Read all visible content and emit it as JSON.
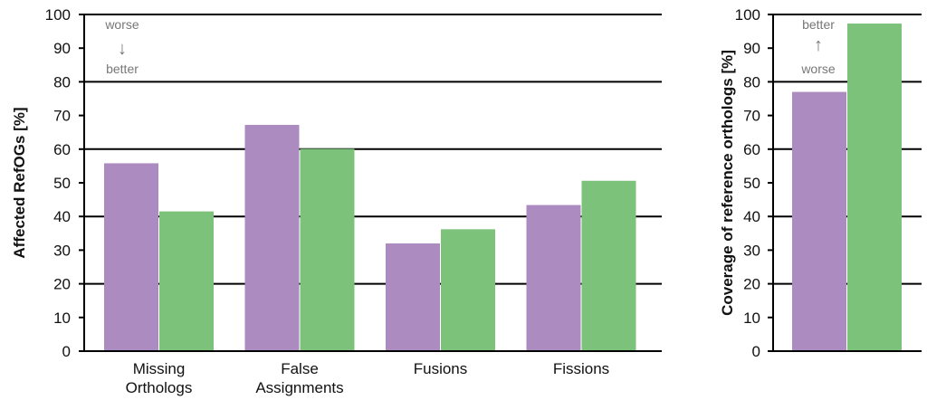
{
  "chart_data": [
    {
      "type": "bar",
      "ylabel": "Affected RefOGs [%]",
      "ylim": [
        0,
        100
      ],
      "yticks": [
        0,
        10,
        20,
        30,
        40,
        50,
        60,
        70,
        80,
        90,
        100
      ],
      "ytick_labels": [
        "0",
        "10",
        "20",
        "30",
        "40",
        "50",
        "60",
        "70",
        "80",
        "90",
        "100"
      ],
      "grid": "horizontal lines at 20, 40, 60, 80 and 100",
      "categories": [
        [
          "Missing",
          "Orthologs"
        ],
        [
          "False",
          "Assignments"
        ],
        [
          "Fusions"
        ],
        [
          "Fissions"
        ]
      ],
      "series": [
        {
          "values": [
            55.8,
            67.2,
            32.0,
            43.4
          ],
          "color": "#ac8bc0"
        },
        {
          "values": [
            41.5,
            60.1,
            36.2,
            50.6
          ],
          "color": "#7cc27a"
        }
      ],
      "annotation": {
        "top": "worse",
        "bottom": "better",
        "arrow": "↓",
        "color": "#777777"
      }
    },
    {
      "type": "bar",
      "ylabel": "Coverage of reference orthologs [%]",
      "ylim": [
        0,
        100
      ],
      "yticks": [
        0,
        10,
        20,
        30,
        40,
        50,
        60,
        70,
        80,
        90,
        100
      ],
      "ytick_labels": [
        "0",
        "10",
        "20",
        "30",
        "40",
        "50",
        "60",
        "70",
        "80",
        "90",
        "100"
      ],
      "categories": [
        [
          ""
        ]
      ],
      "series": [
        {
          "values": [
            77.0
          ],
          "color": "#ac8bc0"
        },
        {
          "values": [
            97.3
          ],
          "color": "#7cc27a"
        }
      ],
      "annotation": {
        "top": "better",
        "bottom": "worse",
        "arrow": "↑",
        "color": "#777777"
      }
    }
  ]
}
